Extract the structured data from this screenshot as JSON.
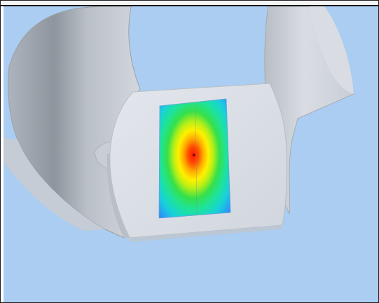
{
  "viewport": {
    "background_color": "#abcdf1",
    "model_color": "#c8ccd4",
    "model_shadow_color": "#8d939c",
    "plate_color": "#dde1e8"
  },
  "contour": {
    "colormap": [
      "#2f88ff",
      "#18d0dc",
      "#1ee39a",
      "#36e04a",
      "#b8ef16",
      "#fff000",
      "#ffad00",
      "#ff4c00",
      "#ff1600"
    ],
    "peak_value_fraction": 1.0,
    "peak_marker_icon": "peak-marker-icon"
  }
}
